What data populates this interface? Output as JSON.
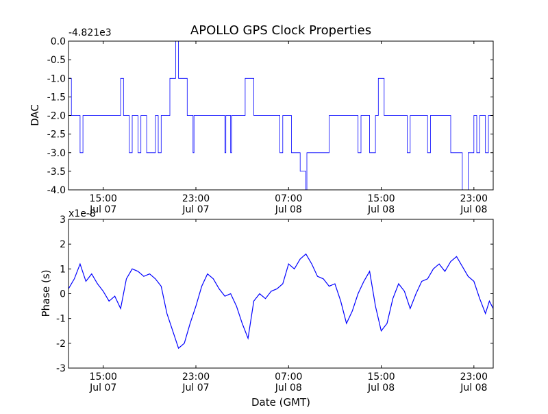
{
  "title": "APOLLO GPS Clock Properties",
  "series_color": "#0000ff",
  "chart_data": [
    {
      "type": "line",
      "title": "APOLLO GPS Clock Properties",
      "offset_label": "-4.821e3",
      "ylabel": "DAC",
      "xlabel": "",
      "ylim": [
        -4.0,
        0.0
      ],
      "yticks": [
        "0.0",
        "-0.5",
        "-1.0",
        "-1.5",
        "-2.0",
        "-2.5",
        "-3.0",
        "-3.5",
        "-4.0"
      ],
      "xlim": [
        "2009-07-07 12:00",
        "2009-07-09 00:40"
      ],
      "xticks": [
        {
          "time": "2009-07-07 15:00",
          "line1": "15:00",
          "line2": "Jul 07"
        },
        {
          "time": "2009-07-07 23:00",
          "line1": "23:00",
          "line2": "Jul 07"
        },
        {
          "time": "2009-07-08 07:00",
          "line1": "07:00",
          "line2": "Jul 08"
        },
        {
          "time": "2009-07-08 15:00",
          "line1": "15:00",
          "line2": "Jul 08"
        },
        {
          "time": "2009-07-08 23:00",
          "line1": "23:00",
          "line2": "Jul 08"
        }
      ],
      "series": [
        {
          "style": "step",
          "points": [
            [
              "2009-07-07 12:00",
              -1.0
            ],
            [
              "2009-07-07 12:15",
              -2.0
            ],
            [
              "2009-07-07 13:00",
              -3.0
            ],
            [
              "2009-07-07 13:15",
              -2.0
            ],
            [
              "2009-07-07 16:30",
              -1.0
            ],
            [
              "2009-07-07 16:45",
              -2.0
            ],
            [
              "2009-07-07 17:15",
              -3.0
            ],
            [
              "2009-07-07 17:30",
              -2.0
            ],
            [
              "2009-07-07 18:00",
              -3.0
            ],
            [
              "2009-07-07 18:15",
              -2.0
            ],
            [
              "2009-07-07 18:45",
              -3.0
            ],
            [
              "2009-07-07 19:30",
              -2.0
            ],
            [
              "2009-07-07 19:45",
              -3.0
            ],
            [
              "2009-07-07 20:00",
              -2.0
            ],
            [
              "2009-07-07 20:45",
              -1.0
            ],
            [
              "2009-07-07 21:15",
              0.0
            ],
            [
              "2009-07-07 21:30",
              -1.0
            ],
            [
              "2009-07-07 22:15",
              -2.0
            ],
            [
              "2009-07-07 22:45",
              -3.0
            ],
            [
              "2009-07-07 22:50",
              -2.0
            ],
            [
              "2009-07-08 01:30",
              -3.0
            ],
            [
              "2009-07-08 01:35",
              -2.0
            ],
            [
              "2009-07-08 02:00",
              -3.0
            ],
            [
              "2009-07-08 02:05",
              -2.0
            ],
            [
              "2009-07-08 03:15",
              -1.0
            ],
            [
              "2009-07-08 04:00",
              -2.0
            ],
            [
              "2009-07-08 06:15",
              -3.0
            ],
            [
              "2009-07-08 06:30",
              -2.0
            ],
            [
              "2009-07-08 07:15",
              -3.0
            ],
            [
              "2009-07-08 08:00",
              -3.5
            ],
            [
              "2009-07-08 08:30",
              -4.0
            ],
            [
              "2009-07-08 08:35",
              -3.0
            ],
            [
              "2009-07-08 10:30",
              -2.0
            ],
            [
              "2009-07-08 13:00",
              -3.0
            ],
            [
              "2009-07-08 13:15",
              -2.0
            ],
            [
              "2009-07-08 14:00",
              -3.0
            ],
            [
              "2009-07-08 14:30",
              -2.0
            ],
            [
              "2009-07-08 14:45",
              -1.0
            ],
            [
              "2009-07-08 15:15",
              -2.0
            ],
            [
              "2009-07-08 17:15",
              -3.0
            ],
            [
              "2009-07-08 17:30",
              -2.0
            ],
            [
              "2009-07-08 19:00",
              -3.0
            ],
            [
              "2009-07-08 19:15",
              -2.0
            ],
            [
              "2009-07-08 21:00",
              -3.0
            ],
            [
              "2009-07-08 22:00",
              -4.0
            ],
            [
              "2009-07-08 22:30",
              -3.0
            ],
            [
              "2009-07-08 23:00",
              -2.0
            ],
            [
              "2009-07-08 23:15",
              -3.0
            ],
            [
              "2009-07-08 23:30",
              -2.0
            ],
            [
              "2009-07-09 00:00",
              -3.0
            ],
            [
              "2009-07-09 00:15",
              -2.0
            ],
            [
              "2009-07-09 00:40",
              -2.0
            ]
          ]
        }
      ]
    },
    {
      "type": "line",
      "offset_label": "x1e-8",
      "ylabel": "Phase (s)",
      "xlabel": "Date (GMT)",
      "ylim": [
        -3,
        3
      ],
      "yticks": [
        "3",
        "2",
        "1",
        "0",
        "-1",
        "-2",
        "-3"
      ],
      "xlim": [
        "2009-07-07 12:00",
        "2009-07-09 00:40"
      ],
      "xticks": [
        {
          "time": "2009-07-07 15:00",
          "line1": "15:00",
          "line2": "Jul 07"
        },
        {
          "time": "2009-07-07 23:00",
          "line1": "23:00",
          "line2": "Jul 07"
        },
        {
          "time": "2009-07-08 07:00",
          "line1": "07:00",
          "line2": "Jul 08"
        },
        {
          "time": "2009-07-08 15:00",
          "line1": "15:00",
          "line2": "Jul 08"
        },
        {
          "time": "2009-07-08 23:00",
          "line1": "23:00",
          "line2": "Jul 08"
        }
      ],
      "series": [
        {
          "style": "line",
          "points": [
            [
              "2009-07-07 12:00",
              0.2
            ],
            [
              "2009-07-07 12:30",
              0.6
            ],
            [
              "2009-07-07 13:00",
              1.2
            ],
            [
              "2009-07-07 13:30",
              0.5
            ],
            [
              "2009-07-07 14:00",
              0.8
            ],
            [
              "2009-07-07 14:30",
              0.4
            ],
            [
              "2009-07-07 15:00",
              0.1
            ],
            [
              "2009-07-07 15:30",
              -0.3
            ],
            [
              "2009-07-07 16:00",
              -0.1
            ],
            [
              "2009-07-07 16:30",
              -0.6
            ],
            [
              "2009-07-07 17:00",
              0.6
            ],
            [
              "2009-07-07 17:30",
              1.0
            ],
            [
              "2009-07-07 18:00",
              0.9
            ],
            [
              "2009-07-07 18:30",
              0.7
            ],
            [
              "2009-07-07 19:00",
              0.8
            ],
            [
              "2009-07-07 19:30",
              0.6
            ],
            [
              "2009-07-07 20:00",
              0.3
            ],
            [
              "2009-07-07 20:30",
              -0.8
            ],
            [
              "2009-07-07 21:00",
              -1.5
            ],
            [
              "2009-07-07 21:30",
              -2.2
            ],
            [
              "2009-07-07 22:00",
              -2.0
            ],
            [
              "2009-07-07 22:30",
              -1.2
            ],
            [
              "2009-07-07 23:00",
              -0.5
            ],
            [
              "2009-07-07 23:30",
              0.3
            ],
            [
              "2009-07-08 00:00",
              0.8
            ],
            [
              "2009-07-08 00:30",
              0.6
            ],
            [
              "2009-07-08 01:00",
              0.2
            ],
            [
              "2009-07-08 01:30",
              -0.1
            ],
            [
              "2009-07-08 02:00",
              0.0
            ],
            [
              "2009-07-08 02:30",
              -0.5
            ],
            [
              "2009-07-08 03:00",
              -1.2
            ],
            [
              "2009-07-08 03:30",
              -1.8
            ],
            [
              "2009-07-08 04:00",
              -0.3
            ],
            [
              "2009-07-08 04:30",
              0.0
            ],
            [
              "2009-07-08 05:00",
              -0.2
            ],
            [
              "2009-07-08 05:30",
              0.1
            ],
            [
              "2009-07-08 06:00",
              0.2
            ],
            [
              "2009-07-08 06:30",
              0.4
            ],
            [
              "2009-07-08 07:00",
              1.2
            ],
            [
              "2009-07-08 07:30",
              1.0
            ],
            [
              "2009-07-08 08:00",
              1.4
            ],
            [
              "2009-07-08 08:30",
              1.6
            ],
            [
              "2009-07-08 09:00",
              1.2
            ],
            [
              "2009-07-08 09:30",
              0.7
            ],
            [
              "2009-07-08 10:00",
              0.6
            ],
            [
              "2009-07-08 10:30",
              0.3
            ],
            [
              "2009-07-08 11:00",
              0.4
            ],
            [
              "2009-07-08 11:30",
              -0.3
            ],
            [
              "2009-07-08 12:00",
              -1.2
            ],
            [
              "2009-07-08 12:30",
              -0.7
            ],
            [
              "2009-07-08 13:00",
              0.0
            ],
            [
              "2009-07-08 13:30",
              0.5
            ],
            [
              "2009-07-08 14:00",
              0.9
            ],
            [
              "2009-07-08 14:30",
              -0.5
            ],
            [
              "2009-07-08 15:00",
              -1.5
            ],
            [
              "2009-07-08 15:30",
              -1.2
            ],
            [
              "2009-07-08 16:00",
              -0.2
            ],
            [
              "2009-07-08 16:30",
              0.4
            ],
            [
              "2009-07-08 17:00",
              0.1
            ],
            [
              "2009-07-08 17:30",
              -0.6
            ],
            [
              "2009-07-08 18:00",
              0.0
            ],
            [
              "2009-07-08 18:30",
              0.5
            ],
            [
              "2009-07-08 19:00",
              0.6
            ],
            [
              "2009-07-08 19:30",
              1.0
            ],
            [
              "2009-07-08 20:00",
              1.2
            ],
            [
              "2009-07-08 20:30",
              0.9
            ],
            [
              "2009-07-08 21:00",
              1.3
            ],
            [
              "2009-07-08 21:30",
              1.5
            ],
            [
              "2009-07-08 22:00",
              1.1
            ],
            [
              "2009-07-08 22:30",
              0.7
            ],
            [
              "2009-07-08 23:00",
              0.5
            ],
            [
              "2009-07-08 23:30",
              -0.2
            ],
            [
              "2009-07-09 00:00",
              -0.8
            ],
            [
              "2009-07-09 00:20",
              -0.3
            ],
            [
              "2009-07-09 00:40",
              -0.6
            ]
          ]
        }
      ]
    }
  ]
}
